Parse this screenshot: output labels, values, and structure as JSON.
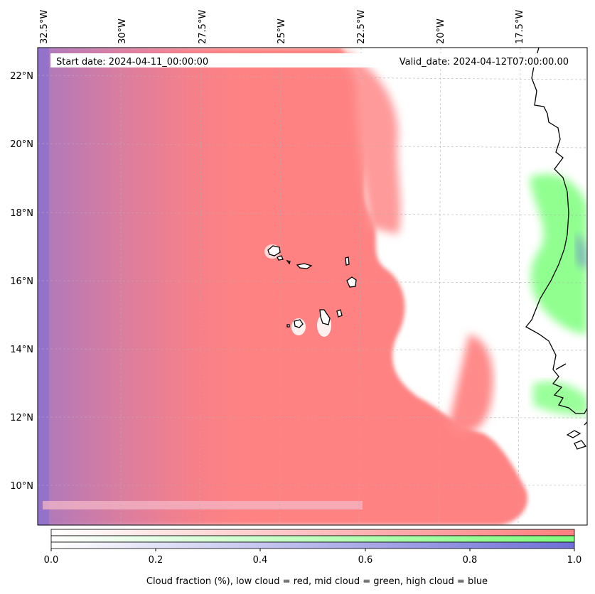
{
  "header": {
    "start_date": "Start date: 2024-04-11_00:00:00",
    "valid_date": "Valid_date: 2024-04-12T07:00:00.00"
  },
  "lon_labels": [
    "32.5°W",
    "30°W",
    "27.5°W",
    "25°W",
    "22.5°W",
    "20°W",
    "17.5°W"
  ],
  "lat_labels": [
    "22°N",
    "20°N",
    "18°N",
    "16°N",
    "14°N",
    "12°N",
    "10°N"
  ],
  "colorbar": {
    "ticks": [
      "0.0",
      "0.2",
      "0.4",
      "0.6",
      "0.8",
      "1.0"
    ],
    "label": "Cloud fraction (%), low cloud = red, mid cloud = green, high cloud = blue",
    "colors": {
      "low": "#ff7f7f",
      "mid": "#80ff80",
      "high": "#6f6fd8"
    }
  }
}
